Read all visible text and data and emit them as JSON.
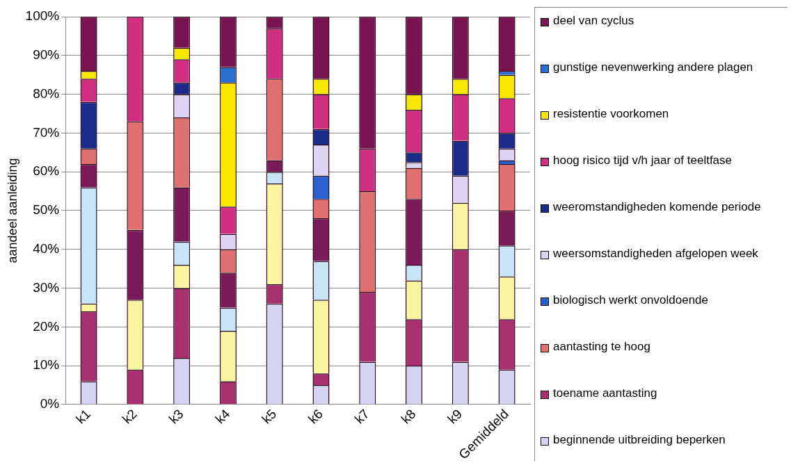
{
  "chart_data": {
    "type": "bar",
    "stacked": true,
    "ylabel": "aandeel aanleiding",
    "categories": [
      "k1",
      "k2",
      "k3",
      "k4",
      "k5",
      "k6",
      "k7",
      "k8",
      "k9",
      "Gemiddeld"
    ],
    "ylim": [
      0,
      100
    ],
    "yticks": [
      {
        "value": 0,
        "label": "0%"
      },
      {
        "value": 10,
        "label": "10%"
      },
      {
        "value": 20,
        "label": "20%"
      },
      {
        "value": 30,
        "label": "30%"
      },
      {
        "value": 40,
        "label": "40%"
      },
      {
        "value": 50,
        "label": "50%"
      },
      {
        "value": 60,
        "label": "60%"
      },
      {
        "value": 70,
        "label": "70%"
      },
      {
        "value": 80,
        "label": "80%"
      },
      {
        "value": 90,
        "label": "90%"
      },
      {
        "value": 100,
        "label": "100%"
      }
    ],
    "grid": "y",
    "legend": "right",
    "series": [
      {
        "name": "beginnende uitbreiding  beperken",
        "color": "#d4d4f0",
        "values": [
          6,
          0,
          12,
          0,
          26,
          5,
          11,
          10,
          11,
          9
        ]
      },
      {
        "name": "toename aantasting",
        "color": "#a8306e",
        "values": [
          18,
          9,
          18,
          6,
          5,
          3,
          18,
          12,
          29,
          13
        ]
      },
      {
        "color": "#f8f4a0",
        "values": [
          2,
          18,
          6,
          13,
          26,
          19,
          0,
          10,
          12,
          11
        ]
      },
      {
        "color": "#c8e4f4",
        "values": [
          30,
          0,
          6,
          6,
          3,
          10,
          0,
          4,
          0,
          8
        ]
      },
      {
        "color": "#7a1a58",
        "values": [
          6,
          18,
          14,
          9,
          3,
          11,
          0,
          17,
          0,
          9
        ]
      },
      {
        "name": "aantasting te hoog",
        "color": "#e07070",
        "values": [
          4,
          28,
          18,
          6,
          21,
          5,
          26,
          8,
          0,
          12
        ]
      },
      {
        "name": "biologisch werkt onvoldoende",
        "color": "#2a60d0",
        "values": [
          0,
          0,
          0,
          0,
          0,
          6,
          0,
          0,
          0,
          1
        ]
      },
      {
        "name": "weersomstandigheden afgelopen week",
        "color": "#dcd4f0",
        "values": [
          0,
          0,
          6,
          4,
          0,
          8,
          0,
          1.5,
          7,
          3
        ]
      },
      {
        "name": "weeromstandigheden komende periode",
        "color": "#1c2a8a",
        "values": [
          12,
          0,
          3,
          0,
          0,
          4,
          0,
          2.5,
          9,
          4
        ]
      },
      {
        "name": "hoog risico tijd v/h jaar of teeltfase",
        "color": "#d03080",
        "values": [
          6,
          27,
          6,
          7,
          13,
          9,
          11,
          11,
          12,
          9
        ]
      },
      {
        "name": "resistentie voorkomen",
        "color": "#f8e800",
        "values": [
          2,
          0,
          3,
          32,
          0,
          4,
          0,
          4,
          4,
          6
        ]
      },
      {
        "name": "gunstige nevenwerking andere plagen",
        "color": "#2a70d0",
        "values": [
          0,
          0,
          0,
          4,
          0,
          0,
          0,
          0,
          0,
          1
        ]
      },
      {
        "name": "deel van cyclus",
        "color": "#7a1450",
        "values": [
          14,
          0,
          8,
          13,
          3,
          16,
          34,
          20,
          16,
          14
        ]
      }
    ]
  }
}
